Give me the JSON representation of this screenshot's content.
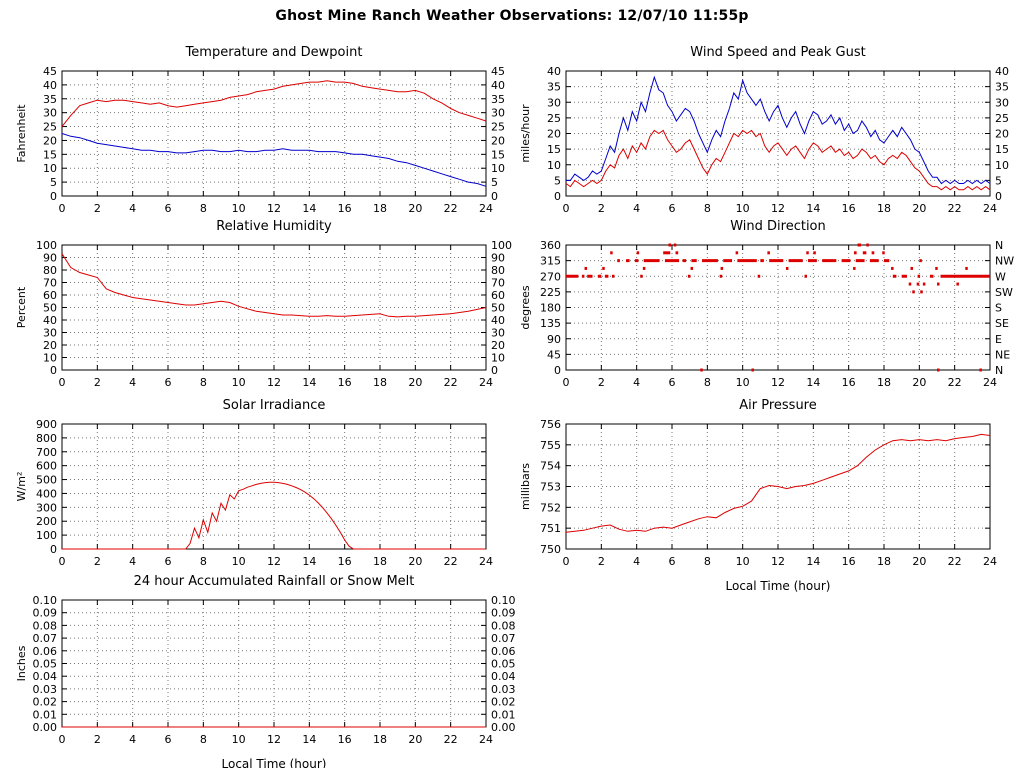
{
  "page_title": "Ghost Mine Ranch Weather Observations: 12/07/10 11:55p",
  "colors": {
    "red": "#dd0000",
    "blue": "#0000cc",
    "grid": "#777777",
    "axis": "#000000"
  },
  "chart_data": [
    {
      "type": "line",
      "title": "Temperature and Dewpoint",
      "ylabel": "Fahrenheit",
      "xlabel": "",
      "ylim": [
        0,
        45
      ],
      "ytick_step": 5,
      "ydecimals": 0,
      "xlim": [
        0,
        24
      ],
      "xtick_step": 2,
      "right_labels": "same",
      "x_start": 0,
      "x_step": 0.5,
      "series": [
        {
          "name": "Temperature",
          "color": "#dd0000",
          "values": [
            25,
            29,
            32.5,
            33.5,
            34.5,
            34,
            34.5,
            34.5,
            34,
            33.5,
            33,
            33.5,
            32.5,
            32,
            32.5,
            33,
            33.5,
            34,
            34.5,
            35.5,
            36,
            36.5,
            37.5,
            38,
            38.5,
            39.5,
            40,
            40.5,
            41,
            41,
            41.5,
            41,
            41,
            40.5,
            39.5,
            39,
            38.5,
            38,
            37.5,
            37.5,
            38,
            37,
            35,
            33.5,
            31.5,
            30,
            29,
            28,
            27
          ]
        },
        {
          "name": "Dewpoint",
          "color": "#0000cc",
          "values": [
            22.5,
            21.5,
            21,
            20,
            19,
            18.5,
            18,
            17.5,
            17,
            16.5,
            16.5,
            16,
            16,
            15.5,
            15.5,
            16,
            16.5,
            16.5,
            16,
            16,
            16.5,
            16,
            16,
            16.5,
            16.5,
            17,
            16.5,
            16.5,
            16.5,
            16,
            16,
            16,
            15.5,
            15,
            15,
            14.5,
            14,
            13.5,
            12.5,
            12,
            11,
            10,
            9,
            8,
            7,
            6,
            5,
            4.5,
            3.5
          ]
        }
      ]
    },
    {
      "type": "line",
      "title": "Wind Speed and Peak Gust",
      "ylabel": "miles/hour",
      "xlabel": "",
      "ylim": [
        0,
        40
      ],
      "ytick_step": 5,
      "ydecimals": 0,
      "xlim": [
        0,
        24
      ],
      "xtick_step": 2,
      "right_labels": "same",
      "x_start": 0,
      "x_step": 0.25,
      "series": [
        {
          "name": "Peak Gust",
          "color": "#0000cc",
          "values": [
            5,
            5,
            7,
            6,
            5,
            6,
            8,
            7,
            8,
            12,
            16,
            14,
            20,
            25,
            21,
            27,
            24,
            30,
            27,
            33,
            38,
            34,
            33,
            29,
            27,
            24,
            26,
            28,
            27,
            24,
            20,
            17,
            14,
            18,
            21,
            19,
            24,
            28,
            33,
            31,
            37,
            33,
            31,
            29,
            31,
            27,
            24,
            27,
            29,
            25,
            22,
            25,
            27,
            23,
            20,
            24,
            27,
            26,
            23,
            24,
            26,
            23,
            25,
            21,
            23,
            20,
            21,
            24,
            22,
            19,
            21,
            18,
            17,
            19,
            21,
            19,
            22,
            20,
            18,
            15,
            14,
            11,
            8,
            6,
            6,
            4,
            5,
            4,
            5,
            4,
            4,
            5,
            4,
            5,
            4,
            5,
            4
          ]
        },
        {
          "name": "Wind Speed",
          "color": "#dd0000",
          "values": [
            4,
            3,
            5,
            4,
            3,
            4,
            5,
            4,
            5,
            8,
            10,
            9,
            13,
            15,
            12,
            16,
            14,
            17,
            15,
            19,
            21,
            20,
            21,
            18,
            16,
            14,
            15,
            17,
            18,
            15,
            12,
            9,
            7,
            10,
            12,
            11,
            14,
            17,
            20,
            19,
            21,
            20,
            21,
            19,
            20,
            16,
            14,
            16,
            17,
            15,
            13,
            15,
            16,
            14,
            12,
            15,
            17,
            16,
            14,
            15,
            16,
            14,
            15,
            13,
            14,
            12,
            13,
            15,
            14,
            12,
            13,
            11,
            10,
            12,
            13,
            12,
            14,
            13,
            11,
            9,
            8,
            6,
            4,
            3,
            3,
            2,
            3,
            2,
            3,
            2,
            2,
            3,
            2,
            3,
            2,
            3,
            2
          ]
        }
      ]
    },
    {
      "type": "line",
      "title": "Relative Humidity",
      "ylabel": "Percent",
      "xlabel": "",
      "ylim": [
        0,
        100
      ],
      "ytick_step": 10,
      "ydecimals": 0,
      "xlim": [
        0,
        24
      ],
      "xtick_step": 2,
      "right_labels": "same",
      "x_start": 0,
      "x_step": 0.5,
      "series": [
        {
          "name": "Relative Humidity",
          "color": "#dd0000",
          "values": [
            93,
            82,
            78,
            76,
            74,
            65,
            62,
            60,
            58,
            57,
            56,
            55,
            54,
            53,
            52,
            52,
            53,
            54,
            55,
            54,
            51,
            49,
            47,
            46,
            45,
            44,
            44,
            43.5,
            43,
            43,
            43.5,
            43,
            43,
            43.5,
            44,
            44.5,
            45,
            43,
            42.5,
            43,
            43,
            43.5,
            44,
            44.5,
            45,
            46,
            47,
            48.5,
            50
          ]
        }
      ]
    },
    {
      "type": "scatter",
      "title": "Wind Direction",
      "ylabel": "degrees",
      "xlabel": "",
      "ylim": [
        0,
        360
      ],
      "ytick_step": 45,
      "ydecimals": 0,
      "xlim": [
        0,
        24
      ],
      "xtick_step": 2,
      "right_labels": [
        "N",
        "NE",
        "E",
        "SE",
        "S",
        "SW",
        "W",
        "NW",
        "N"
      ],
      "point_color": "#dd0000",
      "points": [
        [
          0.0,
          0.7,
          270
        ],
        [
          0.9,
          1.0,
          270
        ],
        [
          1.2,
          1.5,
          270
        ],
        [
          1.8,
          2.0,
          270
        ],
        [
          2.2,
          2.4,
          270
        ],
        [
          2.6,
          2.7,
          270
        ],
        [
          4.2,
          4.3,
          270
        ],
        [
          6.9,
          7.0,
          270
        ],
        [
          8.7,
          8.8,
          270
        ],
        [
          10.85,
          10.95,
          270
        ],
        [
          13.5,
          13.55,
          270
        ],
        [
          18.5,
          18.7,
          270
        ],
        [
          19.0,
          19.3,
          270
        ],
        [
          19.9,
          20.0,
          270
        ],
        [
          20.6,
          20.8,
          270
        ],
        [
          21.2,
          24.0,
          270
        ],
        [
          2.9,
          3.05,
          315
        ],
        [
          3.4,
          3.6,
          315
        ],
        [
          3.9,
          4.1,
          315
        ],
        [
          4.4,
          5.3,
          315
        ],
        [
          5.6,
          6.4,
          315
        ],
        [
          6.6,
          6.8,
          315
        ],
        [
          7.1,
          7.4,
          315
        ],
        [
          7.7,
          8.6,
          315
        ],
        [
          8.9,
          9.4,
          315
        ],
        [
          9.7,
          10.8,
          315
        ],
        [
          11.0,
          11.2,
          315
        ],
        [
          11.5,
          12.3,
          315
        ],
        [
          12.6,
          13.4,
          315
        ],
        [
          13.7,
          14.2,
          315
        ],
        [
          14.5,
          15.3,
          315
        ],
        [
          15.6,
          16.1,
          315
        ],
        [
          16.4,
          16.9,
          315
        ],
        [
          17.2,
          17.7,
          315
        ],
        [
          18.0,
          18.3,
          315
        ],
        [
          20.0,
          20.1,
          315
        ],
        [
          1.05,
          1.1,
          292.5
        ],
        [
          2.05,
          2.1,
          292.5
        ],
        [
          4.35,
          4.4,
          292.5
        ],
        [
          7.05,
          7.1,
          292.5
        ],
        [
          8.75,
          8.8,
          292.5
        ],
        [
          12.45,
          12.5,
          292.5
        ],
        [
          16.25,
          16.3,
          292.5
        ],
        [
          18.4,
          18.45,
          292.5
        ],
        [
          19.5,
          19.55,
          292.5
        ],
        [
          20.9,
          20.95,
          292.5
        ],
        [
          22.6,
          22.7,
          292.5
        ],
        [
          2.5,
          2.55,
          337.5
        ],
        [
          4.0,
          4.05,
          337.5
        ],
        [
          5.5,
          5.9,
          337.5
        ],
        [
          6.2,
          6.35,
          337.5
        ],
        [
          9.6,
          9.65,
          337.5
        ],
        [
          11.4,
          11.45,
          337.5
        ],
        [
          13.6,
          13.7,
          337.5
        ],
        [
          14.0,
          14.05,
          337.5
        ],
        [
          16.3,
          16.45,
          337.5
        ],
        [
          16.8,
          17.0,
          337.5
        ],
        [
          17.3,
          17.45,
          337.5
        ],
        [
          17.9,
          17.95,
          337.5
        ],
        [
          5.8,
          5.95,
          360
        ],
        [
          6.1,
          6.2,
          360
        ],
        [
          16.5,
          16.7,
          360
        ],
        [
          17.0,
          17.1,
          360
        ],
        [
          19.4,
          19.45,
          247.5
        ],
        [
          19.85,
          19.9,
          247.5
        ],
        [
          20.2,
          20.3,
          247.5
        ],
        [
          21.0,
          21.05,
          247.5
        ],
        [
          22.1,
          22.15,
          247.5
        ],
        [
          19.6,
          19.65,
          225
        ],
        [
          20.05,
          20.1,
          225
        ],
        [
          7.6,
          7.65,
          0
        ],
        [
          10.5,
          10.55,
          0
        ],
        [
          21.0,
          21.05,
          0
        ],
        [
          23.4,
          23.45,
          0
        ]
      ]
    },
    {
      "type": "line",
      "title": "Solar Irradiance",
      "ylabel": "W/m²",
      "xlabel": "",
      "ylim": [
        0,
        900
      ],
      "ytick_step": 100,
      "ydecimals": 0,
      "xlim": [
        0,
        24
      ],
      "xtick_step": 2,
      "right_labels": null,
      "x_start": 0,
      "x_step": 0.25,
      "series": [
        {
          "name": "Solar Irradiance",
          "color": "#dd0000",
          "values": [
            0,
            0,
            0,
            0,
            0,
            0,
            0,
            0,
            0,
            0,
            0,
            0,
            0,
            0,
            0,
            0,
            0,
            0,
            0,
            0,
            0,
            0,
            0,
            0,
            0,
            0,
            0,
            0,
            0,
            40,
            150,
            80,
            210,
            120,
            260,
            200,
            330,
            280,
            390,
            360,
            420,
            430,
            445,
            455,
            465,
            472,
            478,
            480,
            480,
            478,
            472,
            465,
            455,
            443,
            428,
            410,
            388,
            362,
            332,
            298,
            260,
            218,
            172,
            120,
            65,
            20,
            0,
            0,
            0,
            0,
            0,
            0,
            0,
            0,
            0,
            0,
            0,
            0,
            0,
            0,
            0,
            0,
            0,
            0,
            0,
            0,
            0,
            0,
            0,
            0,
            0,
            0,
            0,
            0,
            0,
            0,
            0
          ]
        }
      ]
    },
    {
      "type": "line",
      "title": "Air Pressure",
      "ylabel": "millibars",
      "xlabel": "Local Time (hour)",
      "ylim": [
        750,
        756
      ],
      "ytick_step": 1,
      "ydecimals": 0,
      "xlim": [
        0,
        24
      ],
      "xtick_step": 2,
      "right_labels": null,
      "x_start": 0,
      "x_step": 0.5,
      "series": [
        {
          "name": "Air Pressure",
          "color": "#dd0000",
          "values": [
            750.8,
            750.85,
            750.9,
            751.0,
            751.1,
            751.15,
            750.95,
            750.85,
            750.9,
            750.85,
            751.0,
            751.05,
            751.0,
            751.15,
            751.3,
            751.45,
            751.55,
            751.5,
            751.75,
            751.95,
            752.05,
            752.3,
            752.9,
            753.05,
            753.0,
            752.9,
            753.0,
            753.05,
            753.15,
            753.3,
            753.45,
            753.6,
            753.75,
            754.0,
            754.4,
            754.75,
            755.0,
            755.2,
            755.25,
            755.2,
            755.25,
            755.2,
            755.25,
            755.2,
            755.3,
            755.35,
            755.4,
            755.5,
            755.45
          ]
        }
      ]
    },
    {
      "type": "line",
      "title": "24 hour Accumulated Rainfall or Snow Melt",
      "ylabel": "Inches",
      "xlabel": "Local Time (hour)",
      "ylim": [
        0,
        0.1
      ],
      "ytick_step": 0.01,
      "ydecimals": 2,
      "xlim": [
        0,
        24
      ],
      "xtick_step": 2,
      "right_labels": "same",
      "x_start": 0,
      "x_step": 6,
      "series": [
        {
          "name": "Accumulated Rainfall",
          "color": "#dd0000",
          "values": [
            0,
            0,
            0,
            0,
            0
          ]
        }
      ]
    }
  ]
}
